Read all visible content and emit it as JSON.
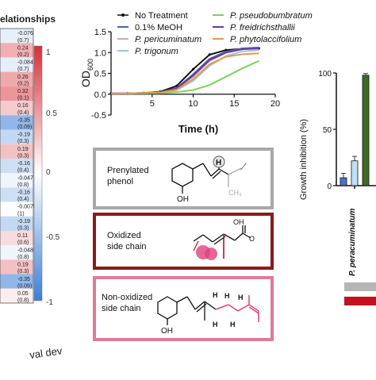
{
  "colors": {
    "no_treatment": "#111111",
    "meoh": "#4f5fb0",
    "pericuminatum": "#d9a0c0",
    "trigonum": "#8fc9ec",
    "pseudobumbratum": "#7fd160",
    "freidrichsthallii": "#6a3d8f",
    "phytolaccifolium": "#e39b4a",
    "box_prenylated": "#a8a8a8",
    "box_oxidized": "#8b1a1a",
    "box_nonoxidized": "#e07a98",
    "heat_positive": "#d7303a",
    "heat_negative": "#3b7fd9",
    "bar_blue": "#4a6fd0",
    "bar_lightblue": "#bfe1f7",
    "bar_green": "#3e6b23",
    "accent_pink": "#e0417a",
    "ref_gray": "#b5b5b5",
    "ref_red": "#c1121f"
  },
  "heatmap": {
    "title": "elationships",
    "bottom_label": "val dev",
    "colorbar_ticks": [
      "1",
      "0.5",
      "0",
      "-0.5",
      "-1"
    ],
    "cell_labels": [
      {
        "r": "-0.076",
        "p": "(0.7)"
      },
      {
        "r": "0.24",
        "p": "(0.2)"
      },
      {
        "r": "-0.084",
        "p": "(0.7)"
      },
      {
        "r": "0.26",
        "p": "(0.2)"
      },
      {
        "r": "0.32",
        "p": "(0.1)"
      },
      {
        "r": "0.16",
        "p": "(0.4)"
      },
      {
        "r": "-0.35",
        "p": "(0.09)"
      },
      {
        "r": "-0.19",
        "p": "(0.3)"
      },
      {
        "r": "0.19",
        "p": "(0.3)"
      },
      {
        "r": "-0.16",
        "p": "(0.4)"
      },
      {
        "r": "-0.047",
        "p": "(0.8)"
      },
      {
        "r": "-0.16",
        "p": "(0.4)"
      },
      {
        "r": "-0.0075",
        "p": "(1)"
      },
      {
        "r": "-0.19",
        "p": "(0.3)"
      },
      {
        "r": "0.11",
        "p": "(0.6)"
      },
      {
        "r": "-0.048",
        "p": "(0.8)"
      },
      {
        "r": "0.19",
        "p": "(0.3)"
      },
      {
        "r": "-0.35",
        "p": "(0.09)"
      },
      {
        "r": "0.05",
        "p": "(0.8)"
      }
    ],
    "cell_values": [
      -0.076,
      0.24,
      -0.084,
      0.26,
      0.32,
      0.16,
      -0.35,
      -0.19,
      0.19,
      -0.16,
      -0.047,
      -0.16,
      -0.0075,
      -0.19,
      0.11,
      -0.048,
      0.19,
      -0.35,
      0.05
    ]
  },
  "growth_chart": {
    "ylabel": "OD",
    "ylabel_sub": "600",
    "xlabel": "Time (h)",
    "legend": [
      {
        "key": "no_treatment",
        "label": "No Treatment",
        "italic": false
      },
      {
        "key": "pseudobumbratum",
        "label": "P. pseudobumbratum",
        "italic": true
      },
      {
        "key": "meoh",
        "label": "0.1% MeOH",
        "italic": false
      },
      {
        "key": "freidrichsthallii",
        "label": "P. freidrichsthallii",
        "italic": true
      },
      {
        "key": "pericuminatum",
        "label": "P. pericuminatum",
        "italic": true
      },
      {
        "key": "phytolaccifolium",
        "label": "P. phytolaccifolium",
        "italic": true
      },
      {
        "key": "trigonum",
        "label": "P. trigonum",
        "italic": true
      }
    ]
  },
  "chart_data": [
    {
      "type": "line",
      "title": "",
      "xlabel": "Time (h)",
      "ylabel": "OD600",
      "xlim": [
        0,
        20
      ],
      "ylim": [
        -0.5,
        1.5
      ],
      "x_ticks": [
        "5",
        "10",
        "15",
        "20"
      ],
      "y_ticks": [
        "1.5",
        "1.0",
        "0.5",
        "0.0",
        "-0.5"
      ],
      "series": [
        {
          "name": "No Treatment",
          "x": [
            0,
            2,
            4,
            6,
            8,
            10,
            12,
            14,
            16,
            18
          ],
          "values": [
            0.02,
            0.02,
            0.03,
            0.06,
            0.2,
            0.6,
            0.95,
            1.06,
            1.09,
            1.1
          ]
        },
        {
          "name": "0.1% MeOH",
          "x": [
            0,
            2,
            4,
            6,
            8,
            10,
            12,
            14,
            16,
            18
          ],
          "values": [
            0.02,
            0.02,
            0.03,
            0.05,
            0.15,
            0.48,
            0.85,
            1.02,
            1.1,
            1.12
          ]
        },
        {
          "name": "P. pericuminatum",
          "x": [
            0,
            2,
            4,
            6,
            8,
            10,
            12,
            14,
            16,
            18
          ],
          "values": [
            0.02,
            0.02,
            0.03,
            0.05,
            0.13,
            0.42,
            0.8,
            1.0,
            1.08,
            1.1
          ]
        },
        {
          "name": "P. trigonum",
          "x": [
            0,
            2,
            4,
            6,
            8,
            10,
            12,
            14,
            16,
            18
          ],
          "values": [
            0.02,
            0.02,
            0.03,
            0.04,
            0.1,
            0.32,
            0.68,
            0.92,
            1.03,
            1.06
          ]
        },
        {
          "name": "P. pseudobumbratum",
          "x": [
            0,
            2,
            4,
            6,
            8,
            10,
            12,
            14,
            16,
            18
          ],
          "values": [
            0.02,
            0.02,
            0.02,
            0.03,
            0.05,
            0.1,
            0.22,
            0.42,
            0.62,
            0.8
          ]
        },
        {
          "name": "P. freidrichsthallii",
          "x": [
            0,
            2,
            4,
            6,
            8,
            10,
            12,
            14,
            16,
            18
          ],
          "values": [
            0.02,
            0.02,
            0.03,
            0.05,
            0.14,
            0.45,
            0.82,
            1.0,
            1.08,
            1.1
          ]
        },
        {
          "name": "P. phytolaccifolium",
          "x": [
            0,
            2,
            4,
            6,
            8,
            10,
            12,
            14,
            16,
            18
          ],
          "values": [
            0.02,
            0.02,
            0.03,
            0.04,
            0.11,
            0.36,
            0.72,
            0.9,
            0.96,
            0.98
          ]
        }
      ]
    },
    {
      "type": "bar",
      "title": "",
      "xlabel": "",
      "ylabel": "Growth inhibition (%)",
      "ylim": [
        0,
        100
      ],
      "y_ticks": [
        "100",
        "50",
        "0"
      ],
      "categories": [
        "P. peracuminatum"
      ],
      "series": [
        {
          "values": [
            7
          ],
          "color": "#4a6fd0"
        },
        {
          "values": [
            22
          ],
          "color": "#bfe1f7"
        },
        {
          "values": [
            98
          ],
          "color": "#3e6b23"
        }
      ]
    }
  ],
  "structures": {
    "prenylated": {
      "label_line1": "Prenylated",
      "label_line2": "phenol",
      "oh": "OH",
      "h": "H",
      "ch3": "CH₃"
    },
    "oxidized": {
      "label_line1": "Oxidized",
      "label_line2": "side chain",
      "oh": "OH",
      "o": "O"
    },
    "nonoxidized": {
      "label_line1": "Non-oxidized",
      "label_line2": "side chain",
      "oh": "OH",
      "h": "H"
    }
  }
}
